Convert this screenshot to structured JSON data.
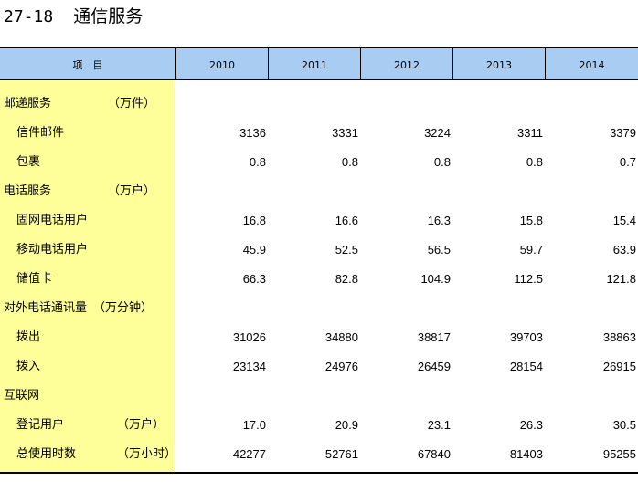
{
  "title": {
    "number": "27-18",
    "text": "通信服务"
  },
  "header": {
    "item_label": "项　目",
    "years": [
      "2010",
      "2011",
      "2012",
      "2013",
      "2014"
    ]
  },
  "rows": [
    {
      "label": "邮递服务",
      "unit": "（万件）",
      "level": 0,
      "values": [
        "",
        "",
        "",
        "",
        ""
      ]
    },
    {
      "label": "信件邮件",
      "unit": "",
      "level": 1,
      "values": [
        "3136",
        "3331",
        "3224",
        "3311",
        "3379"
      ]
    },
    {
      "label": "包裹",
      "unit": "",
      "level": 1,
      "values": [
        "0.8",
        "0.8",
        "0.8",
        "0.8",
        "0.7"
      ]
    },
    {
      "label": "电话服务",
      "unit": "（万户）",
      "level": 0,
      "values": [
        "",
        "",
        "",
        "",
        ""
      ]
    },
    {
      "label": "固网电话用户",
      "unit": "",
      "level": 1,
      "values": [
        "16.8",
        "16.6",
        "16.3",
        "15.8",
        "15.4"
      ]
    },
    {
      "label": "移动电话用户",
      "unit": "",
      "level": 1,
      "values": [
        "45.9",
        "52.5",
        "56.5",
        "59.7",
        "63.9"
      ]
    },
    {
      "label": "储值卡",
      "unit": "",
      "level": 1,
      "values": [
        "66.3",
        "82.8",
        "104.9",
        "112.5",
        "121.8"
      ]
    },
    {
      "label": "对外电话通讯量",
      "unit": "（万分钟）",
      "level": 0,
      "values": [
        "",
        "",
        "",
        "",
        ""
      ]
    },
    {
      "label": "拨出",
      "unit": "",
      "level": 1,
      "values": [
        "31026",
        "34880",
        "38817",
        "39703",
        "38863"
      ]
    },
    {
      "label": "拨入",
      "unit": "",
      "level": 1,
      "values": [
        "23134",
        "24976",
        "26459",
        "28154",
        "26915"
      ]
    },
    {
      "label": "互联网",
      "unit": "",
      "level": 0,
      "values": [
        "",
        "",
        "",
        "",
        ""
      ]
    },
    {
      "label": "登记用户",
      "unit": "（万户）",
      "level": 1,
      "values": [
        "17.0",
        "20.9",
        "23.1",
        "26.3",
        "30.5"
      ]
    },
    {
      "label": "总使用时数",
      "unit": "（万小时）",
      "level": 1,
      "values": [
        "42277",
        "52761",
        "67840",
        "81403",
        "95255"
      ]
    }
  ]
}
